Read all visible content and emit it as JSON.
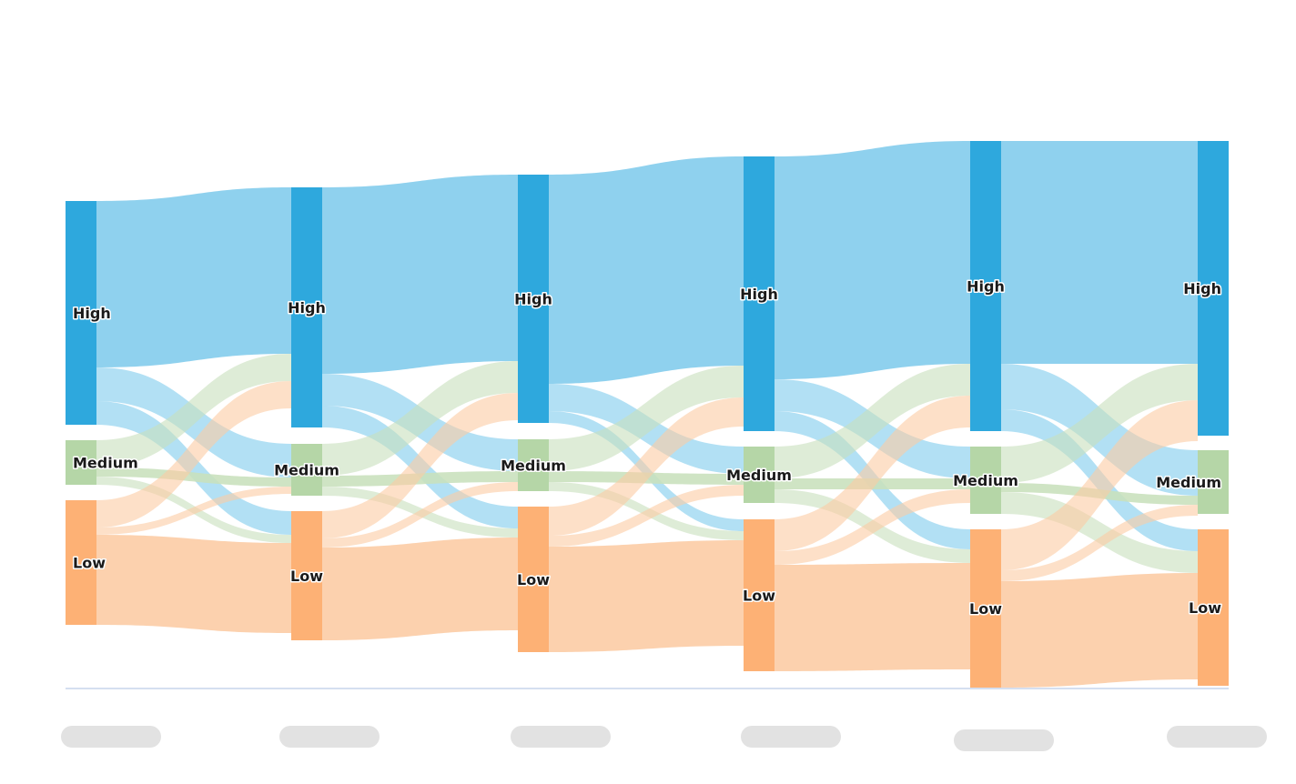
{
  "chart_data": {
    "type": "sankey",
    "title": "",
    "categories": [
      "High",
      "Medium",
      "Low"
    ],
    "colors": {
      "High": {
        "node": "#2ea8dd",
        "link": "#7fcbec"
      },
      "Medium": {
        "node": "#b5d6a7",
        "link": "#c8e0bc"
      },
      "Low": {
        "node": "#fdb175",
        "link": "#fccba3"
      }
    },
    "stages": [
      {
        "nodes": {
          "High": 246,
          "Medium": 49,
          "Low": 137
        }
      },
      {
        "nodes": {
          "High": 264,
          "Medium": 57,
          "Low": 142
        }
      },
      {
        "nodes": {
          "High": 273,
          "Medium": 57,
          "Low": 160
        }
      },
      {
        "nodes": {
          "High": 302,
          "Medium": 62,
          "Low": 167
        }
      },
      {
        "nodes": {
          "High": 319,
          "Medium": 74,
          "Low": 174
        }
      },
      {
        "nodes": {
          "High": 324,
          "Medium": 70,
          "Low": 172
        }
      }
    ],
    "flows": [
      {
        "High": {
          "High": 183,
          "Medium": 37,
          "Low": 26
        },
        "Medium": {
          "High": 30,
          "Medium": 10,
          "Low": 9
        },
        "Low": {
          "High": 30,
          "Medium": 8,
          "Low": 99
        }
      },
      {
        "High": {
          "High": 205,
          "Medium": 35,
          "Low": 24
        },
        "Medium": {
          "High": 35,
          "Medium": 12,
          "Low": 10
        },
        "Low": {
          "High": 30,
          "Medium": 10,
          "Low": 102
        }
      },
      {
        "High": {
          "High": 230,
          "Medium": 30,
          "Low": 13
        },
        "Medium": {
          "High": 35,
          "Medium": 12,
          "Low": 10
        },
        "Low": {
          "High": 32,
          "Medium": 12,
          "Low": 116
        }
      },
      {
        "High": {
          "High": 245,
          "Medium": 35,
          "Low": 22
        },
        "Medium": {
          "High": 35,
          "Medium": 12,
          "Low": 15
        },
        "Low": {
          "High": 35,
          "Medium": 15,
          "Low": 117
        }
      },
      {
        "High": {
          "High": 245,
          "Medium": 50,
          "Low": 24
        },
        "Medium": {
          "High": 40,
          "Medium": 10,
          "Low": 24
        },
        "Low": {
          "High": 45,
          "Medium": 12,
          "Low": 117
        }
      }
    ],
    "stage_labels_redacted": true
  }
}
